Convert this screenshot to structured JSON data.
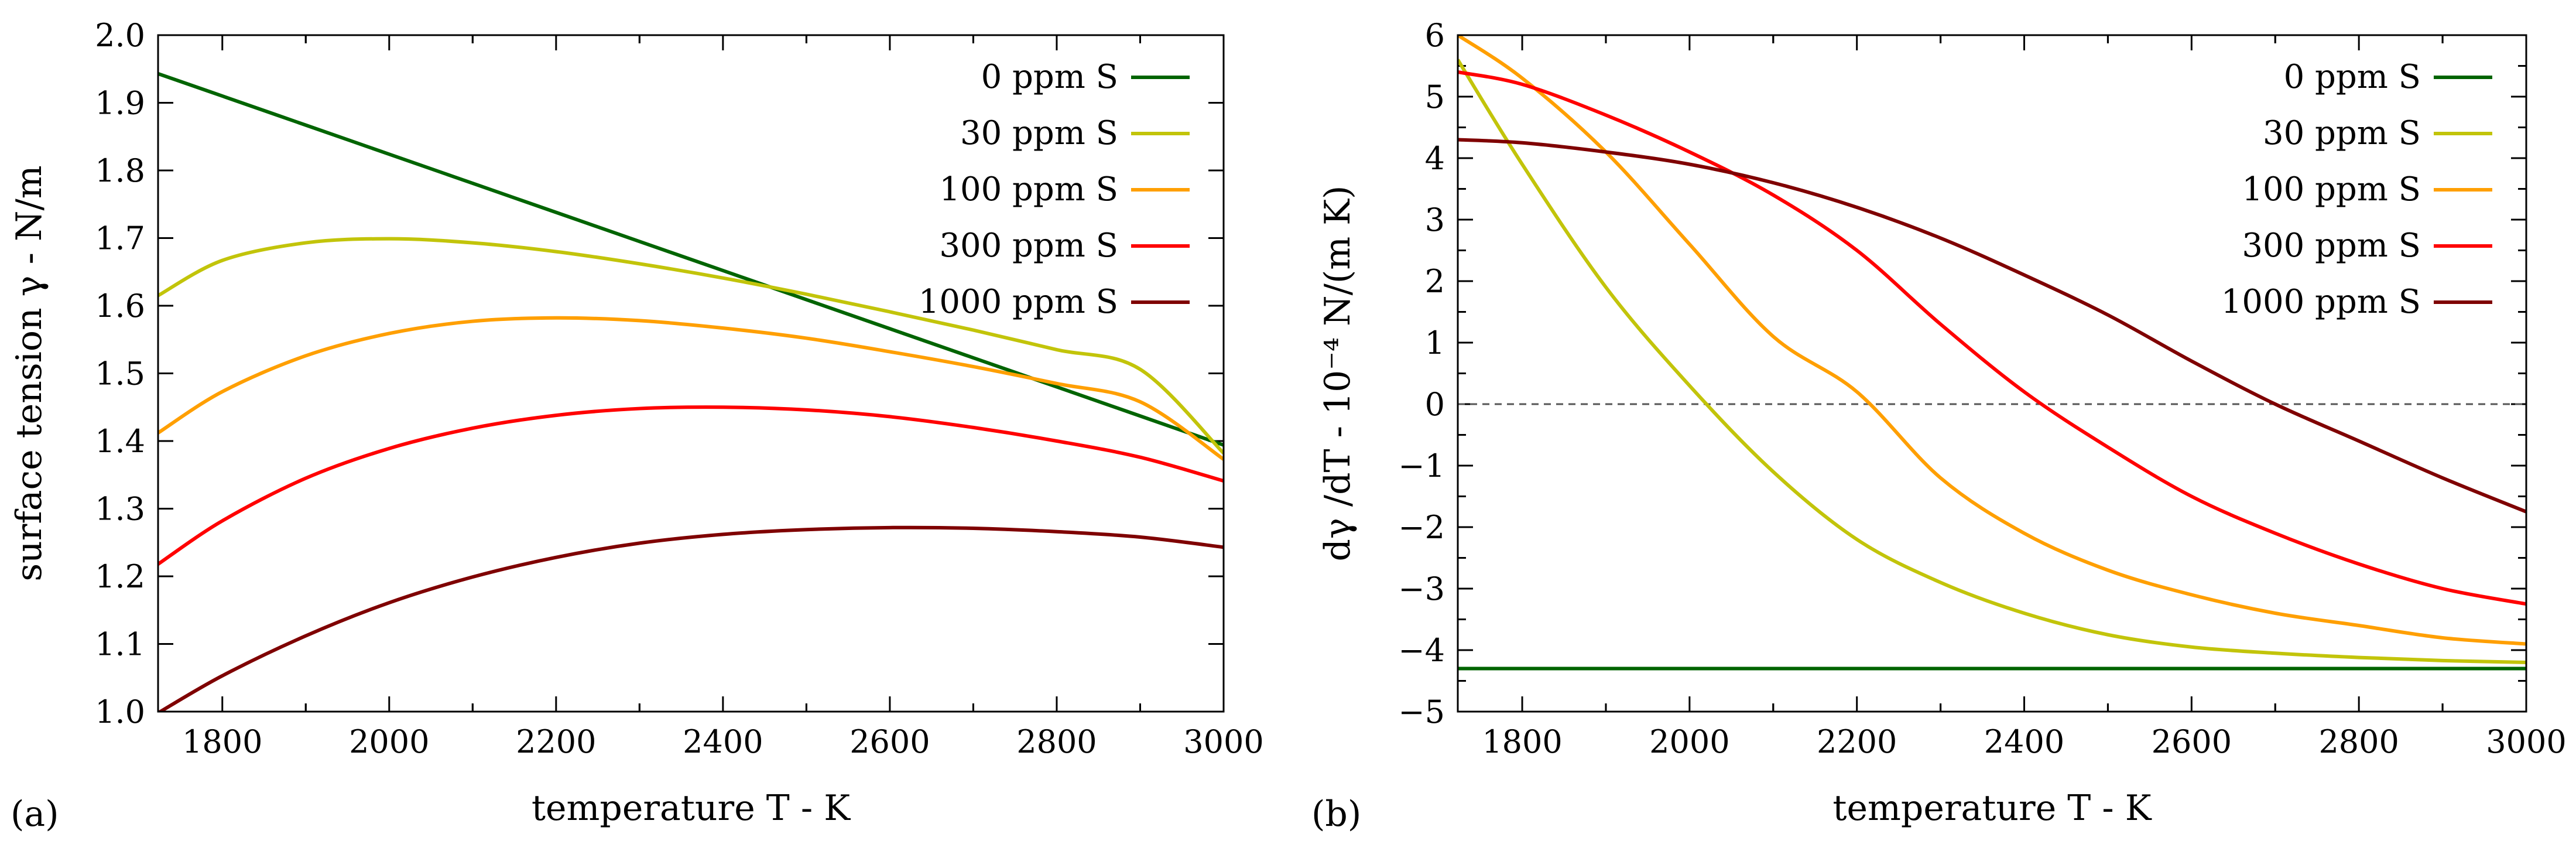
{
  "colors": {
    "zero_line": "#555555",
    "axes": "#000000"
  },
  "chart_data": [
    {
      "type": "line",
      "panel_label": "(a)",
      "title": "",
      "xlabel": "temperature T - K",
      "ylabel": "surface tension γ - N/m",
      "xlim": [
        1723,
        3000
      ],
      "ylim": [
        1.0,
        2.0
      ],
      "xticks": [
        1800,
        2000,
        2200,
        2400,
        2600,
        2800,
        3000
      ],
      "xtick_labels": [
        "1800",
        "2000",
        "2200",
        "2400",
        "2600",
        "2800",
        "3000"
      ],
      "yticks": [
        1.0,
        1.1,
        1.2,
        1.3,
        1.4,
        1.5,
        1.6,
        1.7,
        1.8,
        1.9,
        2.0
      ],
      "ytick_labels": [
        "1.0",
        "1.1",
        "1.2",
        "1.3",
        "1.4",
        "1.5",
        "1.6",
        "1.7",
        "1.8",
        "1.9",
        "2.0"
      ],
      "legend_position": "top-right",
      "x": [
        1723,
        1800,
        1900,
        2000,
        2100,
        2200,
        2300,
        2400,
        2500,
        2600,
        2700,
        2800,
        2900,
        3000
      ],
      "series": [
        {
          "name": "0 ppm S",
          "color": "#006400",
          "values": [
            1.943,
            1.91,
            1.867,
            1.824,
            1.781,
            1.738,
            1.695,
            1.652,
            1.609,
            1.566,
            1.523,
            1.48,
            1.437,
            1.394
          ]
        },
        {
          "name": "30 ppm S",
          "color": "#c2c40a",
          "values": [
            1.615,
            1.667,
            1.693,
            1.699,
            1.693,
            1.68,
            1.662,
            1.641,
            1.617,
            1.591,
            1.564,
            1.535,
            1.506,
            1.382
          ]
        },
        {
          "name": "100 ppm S",
          "color": "#ff9f00",
          "values": [
            1.412,
            1.473,
            1.526,
            1.559,
            1.577,
            1.582,
            1.578,
            1.567,
            1.552,
            1.532,
            1.51,
            1.485,
            1.458,
            1.373
          ]
        },
        {
          "name": "300 ppm S",
          "color": "#ff0000",
          "values": [
            1.218,
            1.282,
            1.345,
            1.389,
            1.419,
            1.438,
            1.448,
            1.45,
            1.446,
            1.436,
            1.42,
            1.4,
            1.376,
            1.341
          ]
        },
        {
          "name": "1000 ppm S",
          "color": "#7f0000",
          "values": [
            0.998,
            1.053,
            1.112,
            1.161,
            1.199,
            1.228,
            1.249,
            1.262,
            1.269,
            1.272,
            1.271,
            1.266,
            1.258,
            1.243
          ]
        }
      ]
    },
    {
      "type": "line",
      "panel_label": "(b)",
      "title": "",
      "xlabel": "temperature T - K",
      "ylabel": "dγ /dT - 10⁻⁴ N/(m K)",
      "xlim": [
        1723,
        3000
      ],
      "ylim": [
        -5,
        6
      ],
      "xticks": [
        1800,
        2000,
        2200,
        2400,
        2600,
        2800,
        3000
      ],
      "xtick_labels": [
        "1800",
        "2000",
        "2200",
        "2400",
        "2600",
        "2800",
        "3000"
      ],
      "yticks": [
        -5,
        -4,
        -3,
        -2,
        -1,
        0,
        1,
        2,
        3,
        4,
        5,
        6
      ],
      "ytick_labels": [
        "−5",
        "−4",
        "−3",
        "−2",
        "−1",
        "0",
        "1",
        "2",
        "3",
        "4",
        "5",
        "6"
      ],
      "legend_position": "top-right",
      "reference_line_y": 0,
      "x": [
        1723,
        1800,
        1900,
        2000,
        2100,
        2200,
        2300,
        2400,
        2500,
        2600,
        2700,
        2800,
        2900,
        3000
      ],
      "series": [
        {
          "name": "0 ppm S",
          "color": "#006400",
          "values": [
            -4.3,
            -4.3,
            -4.3,
            -4.3,
            -4.3,
            -4.3,
            -4.3,
            -4.3,
            -4.3,
            -4.3,
            -4.3,
            -4.3,
            -4.3,
            -4.3
          ]
        },
        {
          "name": "30 ppm S",
          "color": "#c2c40a",
          "values": [
            5.6,
            3.9,
            1.9,
            0.3,
            -1.1,
            -2.2,
            -2.9,
            -3.4,
            -3.75,
            -3.95,
            -4.05,
            -4.12,
            -4.17,
            -4.2
          ]
        },
        {
          "name": "100 ppm S",
          "color": "#ff9f00",
          "values": [
            6.0,
            5.3,
            4.1,
            2.6,
            1.1,
            0.2,
            -1.2,
            -2.1,
            -2.7,
            -3.1,
            -3.4,
            -3.6,
            -3.8,
            -3.9
          ]
        },
        {
          "name": "300 ppm S",
          "color": "#ff0000",
          "values": [
            5.4,
            5.2,
            4.7,
            4.1,
            3.4,
            2.5,
            1.3,
            0.2,
            -0.7,
            -1.5,
            -2.1,
            -2.6,
            -3.0,
            -3.25
          ]
        },
        {
          "name": "1000 ppm S",
          "color": "#7f0000",
          "values": [
            4.3,
            4.25,
            4.1,
            3.9,
            3.6,
            3.2,
            2.7,
            2.1,
            1.45,
            0.7,
            0.0,
            -0.6,
            -1.2,
            -1.75
          ]
        }
      ]
    }
  ]
}
